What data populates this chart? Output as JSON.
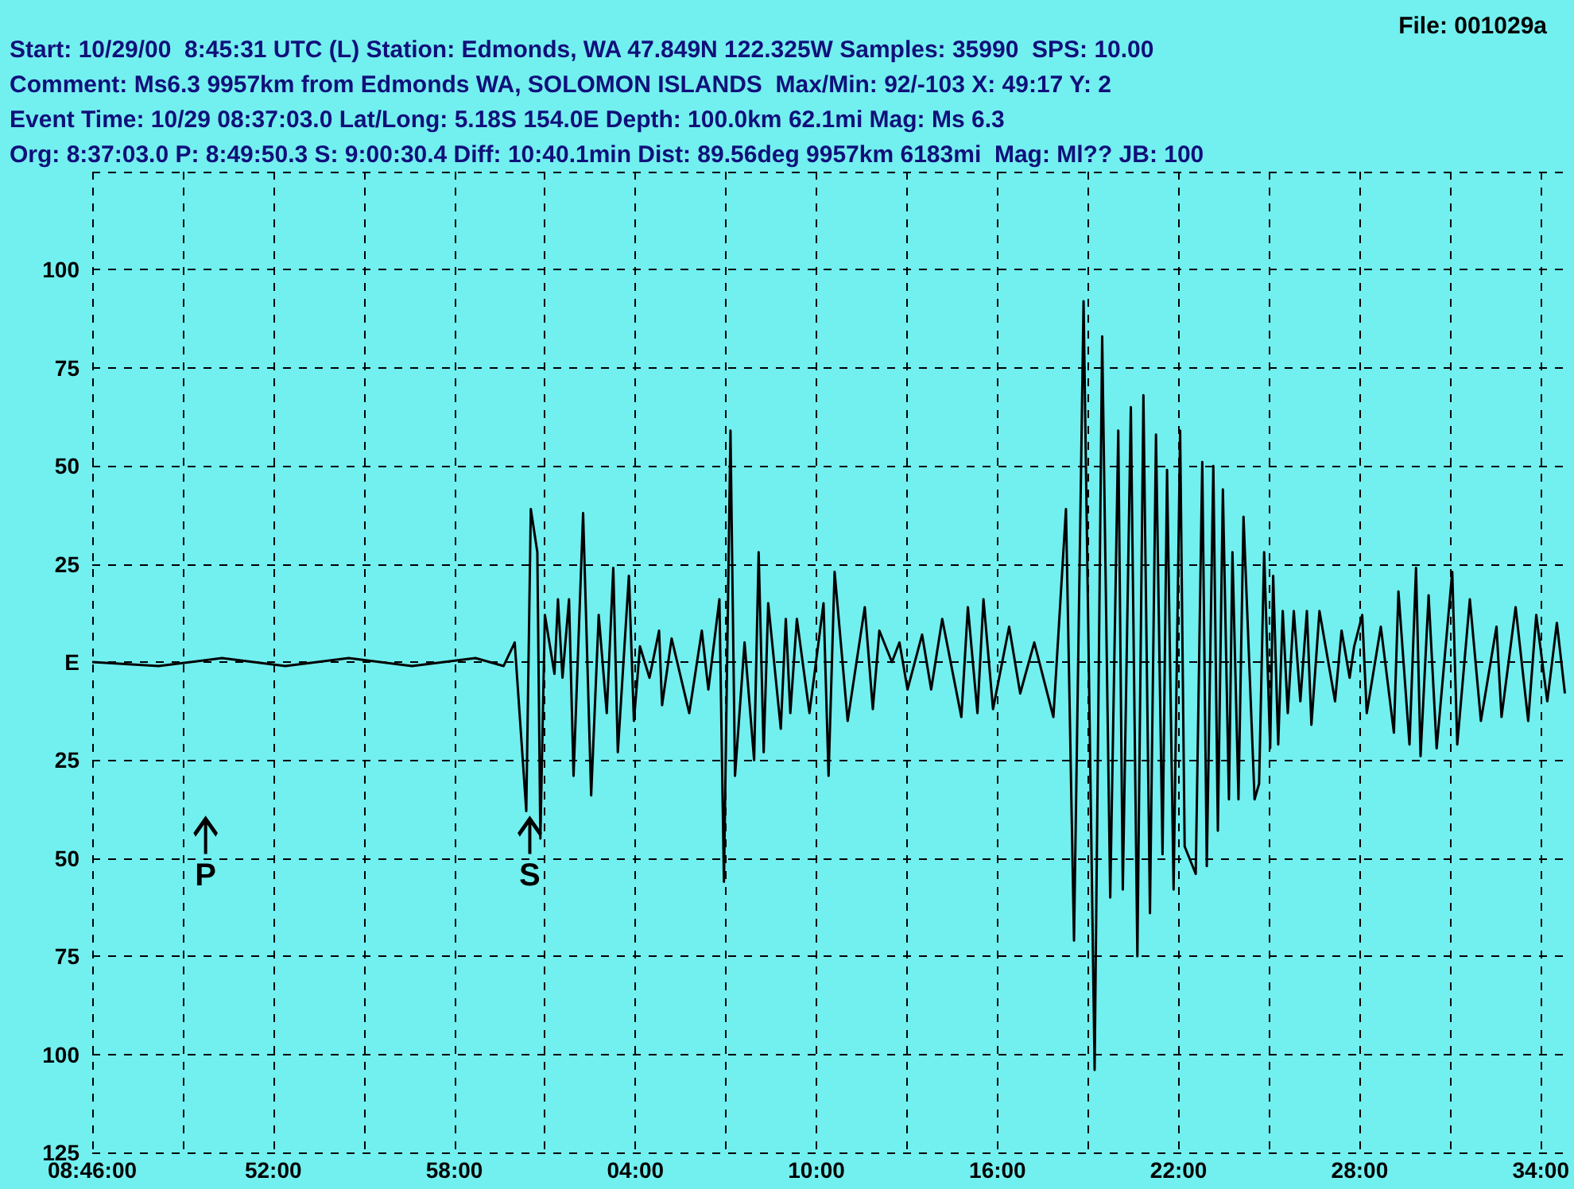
{
  "chart_data": {
    "type": "line",
    "title": "File: 001029a",
    "annotations": [
      "Start: 10/29/00  8:45:31 UTC (L) Station: Edmonds, WA 47.849N 122.325W Samples: 35990  SPS: 10.00",
      "Comment: Ms6.3 9957km from Edmonds WA, SOLOMON ISLANDS  Max/Min: 92/-103 X: 49:17 Y: 2",
      "Event Time: 10/29 08:37:03.0 Lat/Long: 5.18S 154.0E Depth: 100.0km 62.1mi Mag: Ms 6.3",
      "Org: 8:37:03.0 P: 8:49:50.3 S: 9:00:30.4 Diff: 10:40.1min Dist: 89.56deg 9957km 6183mi  Mag: Ml?? JB: 100",
      "P",
      {
        "text": "S",
        "x": "2000-10-29T09:00:30"
      }
    ],
    "x": [
      "2000-10-29T08:46:00",
      "2000-10-29T08:48:12",
      "2000-10-29T08:50:18",
      "2000-10-29T08:52:24",
      "2000-10-29T08:54:30",
      "2000-10-29T08:56:36",
      "2000-10-29T08:58:42",
      "2000-10-29T08:59:38",
      "2000-10-29T09:00:00",
      "2000-10-29T09:00:23",
      "2000-10-29T09:00:32",
      "2000-10-29T09:00:45",
      "2000-10-29T09:00:51",
      "2000-10-29T09:01:00",
      "2000-10-29T09:01:19",
      "2000-10-29T09:01:26",
      "2000-10-29T09:01:35",
      "2000-10-29T09:01:48",
      "2000-10-29T09:01:57",
      "2000-10-29T09:02:16",
      "2000-10-29T09:02:32",
      "2000-10-29T09:02:47",
      "2000-10-29T09:03:03",
      "2000-10-29T09:03:16",
      "2000-10-29T09:03:25",
      "2000-10-29T09:03:47",
      "2000-10-29T09:03:57",
      "2000-10-29T09:04:09",
      "2000-10-29T09:04:28",
      "2000-10-29T09:04:47",
      "2000-10-29T09:04:53",
      "2000-10-29T09:05:12",
      "2000-10-29T09:05:47",
      "2000-10-29T09:06:12",
      "2000-10-29T09:06:25",
      "2000-10-29T09:06:47",
      "2000-10-29T09:06:56",
      "2000-10-29T09:07:09",
      "2000-10-29T09:07:18",
      "2000-10-29T09:07:37",
      "2000-10-29T09:07:56",
      "2000-10-29T09:08:05",
      "2000-10-29T09:08:15",
      "2000-10-29T09:08:24",
      "2000-10-29T09:08:49",
      "2000-10-29T09:08:59",
      "2000-10-29T09:09:08",
      "2000-10-29T09:09:21",
      "2000-10-29T09:09:46",
      "2000-10-29T09:10:14",
      "2000-10-29T09:10:24",
      "2000-10-29T09:10:36",
      "2000-10-29T09:11:02",
      "2000-10-29T09:11:36",
      "2000-10-29T09:11:52",
      "2000-10-29T09:12:05",
      "2000-10-29T09:12:30",
      "2000-10-29T09:12:45",
      "2000-10-29T09:13:01",
      "2000-10-29T09:13:30",
      "2000-10-29T09:13:48",
      "2000-10-29T09:14:10",
      "2000-10-29T09:14:48",
      "2000-10-29T09:15:01",
      "2000-10-29T09:15:20",
      "2000-10-29T09:15:32",
      "2000-10-29T09:15:51",
      "2000-10-29T09:16:23",
      "2000-10-29T09:16:45",
      "2000-10-29T09:17:13",
      "2000-10-29T09:17:51",
      "2000-10-29T09:18:16",
      "2000-10-29T09:18:32",
      "2000-10-29T09:18:51",
      "2000-10-29T09:19:13",
      "2000-10-29T09:19:28",
      "2000-10-29T09:19:44",
      "2000-10-29T09:20:00",
      "2000-10-29T09:20:09",
      "2000-10-29T09:20:25",
      "2000-10-29T09:20:38",
      "2000-10-29T09:20:50",
      "2000-10-29T09:21:03",
      "2000-10-29T09:21:15",
      "2000-10-29T09:21:28",
      "2000-10-29T09:21:37",
      "2000-10-29T09:21:50",
      "2000-10-29T09:22:03",
      "2000-10-29T09:22:12",
      "2000-10-29T09:22:34",
      "2000-10-29T09:22:47",
      "2000-10-29T09:22:56",
      "2000-10-29T09:23:09",
      "2000-10-29T09:23:18",
      "2000-10-29T09:23:28",
      "2000-10-29T09:23:40",
      "2000-10-29T09:23:47",
      "2000-10-29T09:23:59",
      "2000-10-29T09:24:09",
      "2000-10-29T09:24:31",
      "2000-10-29T09:24:40",
      "2000-10-29T09:24:50",
      "2000-10-29T09:25:02",
      "2000-10-29T09:25:08",
      "2000-10-29T09:25:18",
      "2000-10-29T09:25:27",
      "2000-10-29T09:25:37",
      "2000-10-29T09:25:49",
      "2000-10-29T09:26:02",
      "2000-10-29T09:26:15",
      "2000-10-29T09:26:24",
      "2000-10-29T09:26:40",
      "2000-10-29T09:27:11",
      "2000-10-29T09:27:24",
      "2000-10-29T09:27:40",
      "2000-10-29T09:27:49",
      "2000-10-29T09:28:05",
      "2000-10-29T09:28:14",
      "2000-10-29T09:28:42",
      "2000-10-29T09:29:08",
      "2000-10-29T09:29:17",
      "2000-10-29T09:29:39",
      "2000-10-29T09:29:52",
      "2000-10-29T09:30:01",
      "2000-10-29T09:30:17",
      "2000-10-29T09:30:33",
      "2000-10-29T09:31:04",
      "2000-10-29T09:31:14",
      "2000-10-29T09:31:39",
      "2000-10-29T09:32:01",
      "2000-10-29T09:32:32",
      "2000-10-29T09:32:42",
      "2000-10-29T09:33:10",
      "2000-10-29T09:33:35",
      "2000-10-29T09:33:51",
      "2000-10-29T09:34:13",
      "2000-10-29T09:34:32",
      "2000-10-29T09:34:48"
    ],
    "series": [
      {
        "color": "#000000",
        "values": [
          0,
          -1,
          1,
          -1,
          1,
          -1,
          1,
          -1,
          5,
          -38,
          39,
          28,
          -45,
          12,
          -3,
          16,
          -4,
          16,
          -29,
          38,
          -34,
          12,
          -13,
          24,
          -23,
          22,
          -15,
          4,
          -4,
          8,
          -11,
          6,
          -13,
          8,
          -7,
          16,
          -56,
          59,
          -29,
          5,
          -25,
          28,
          -23,
          15,
          -17,
          11,
          -13,
          11,
          -13,
          15,
          -29,
          23,
          -15,
          14,
          -12,
          8,
          0,
          5,
          -7,
          7,
          -7,
          11,
          -14,
          14,
          -13,
          16,
          -12,
          9,
          -8,
          5,
          -14,
          39,
          -71,
          92,
          -104,
          83,
          -60,
          59,
          -58,
          65,
          -75,
          68,
          -64,
          58,
          -49,
          49,
          -58,
          59,
          -47,
          -54,
          51,
          -52,
          50,
          -43,
          44,
          -35,
          28,
          -35,
          37,
          -35,
          -31,
          28,
          -22,
          22,
          -21,
          13,
          -13,
          13,
          -10,
          13,
          -16,
          13,
          -10,
          8,
          -4,
          4,
          12,
          -13,
          9,
          -18,
          18,
          -21,
          24,
          -24,
          17,
          -22,
          23,
          -21,
          16,
          -15,
          9,
          -14,
          14,
          -15,
          12,
          -10,
          10,
          -8
        ]
      }
    ],
    "xlim": [
      "2000-10-29T08:46:00",
      "2000-10-29T09:34:48"
    ],
    "xticks": [
      {
        "value": "2000-10-29T08:46",
        "label": "08:46:00"
      },
      {
        "value": "2000-10-29T08:49",
        "label": null
      },
      {
        "value": "2000-10-29T08:52",
        "label": "52:00"
      },
      {
        "value": "2000-10-29T08:55",
        "label": null
      },
      {
        "value": "2000-10-29T08:58",
        "label": "58:00"
      },
      {
        "value": "2000-10-29T09:01",
        "label": null
      },
      {
        "value": "2000-10-29T09:04",
        "label": "04:00"
      },
      {
        "value": "2000-10-29T09:07",
        "label": null
      },
      {
        "value": "2000-10-29T09:10",
        "label": "10:00"
      },
      {
        "value": "2000-10-29T09:13",
        "label": null
      },
      {
        "value": "2000-10-29T09:16",
        "label": "16:00"
      },
      {
        "value": "2000-10-29T09:19",
        "label": null
      },
      {
        "value": "2000-10-29T09:22",
        "label": "22:00"
      },
      {
        "value": "2000-10-29T09:25",
        "label": null
      },
      {
        "value": "2000-10-29T09:28",
        "label": "28:00"
      },
      {
        "value": "2000-10-29T09:31",
        "label": null
      },
      {
        "value": "2000-10-29T09:34",
        "label": "34:00"
      }
    ],
    "ylim": [
      -125,
      125
    ],
    "yticks": [
      {
        "value": -125,
        "label": "125"
      },
      {
        "value": -100,
        "label": "100"
      },
      {
        "value": -75,
        "label": "75"
      },
      {
        "value": -50,
        "label": "50"
      },
      {
        "value": -25,
        "label": "25"
      },
      {
        "value": 0,
        "label": "E"
      },
      25,
      50,
      75,
      100,
      {
        "value": 125,
        "label": null
      }
    ],
    "grid": true,
    "marker": "none",
    "line_style": "solid"
  }
}
